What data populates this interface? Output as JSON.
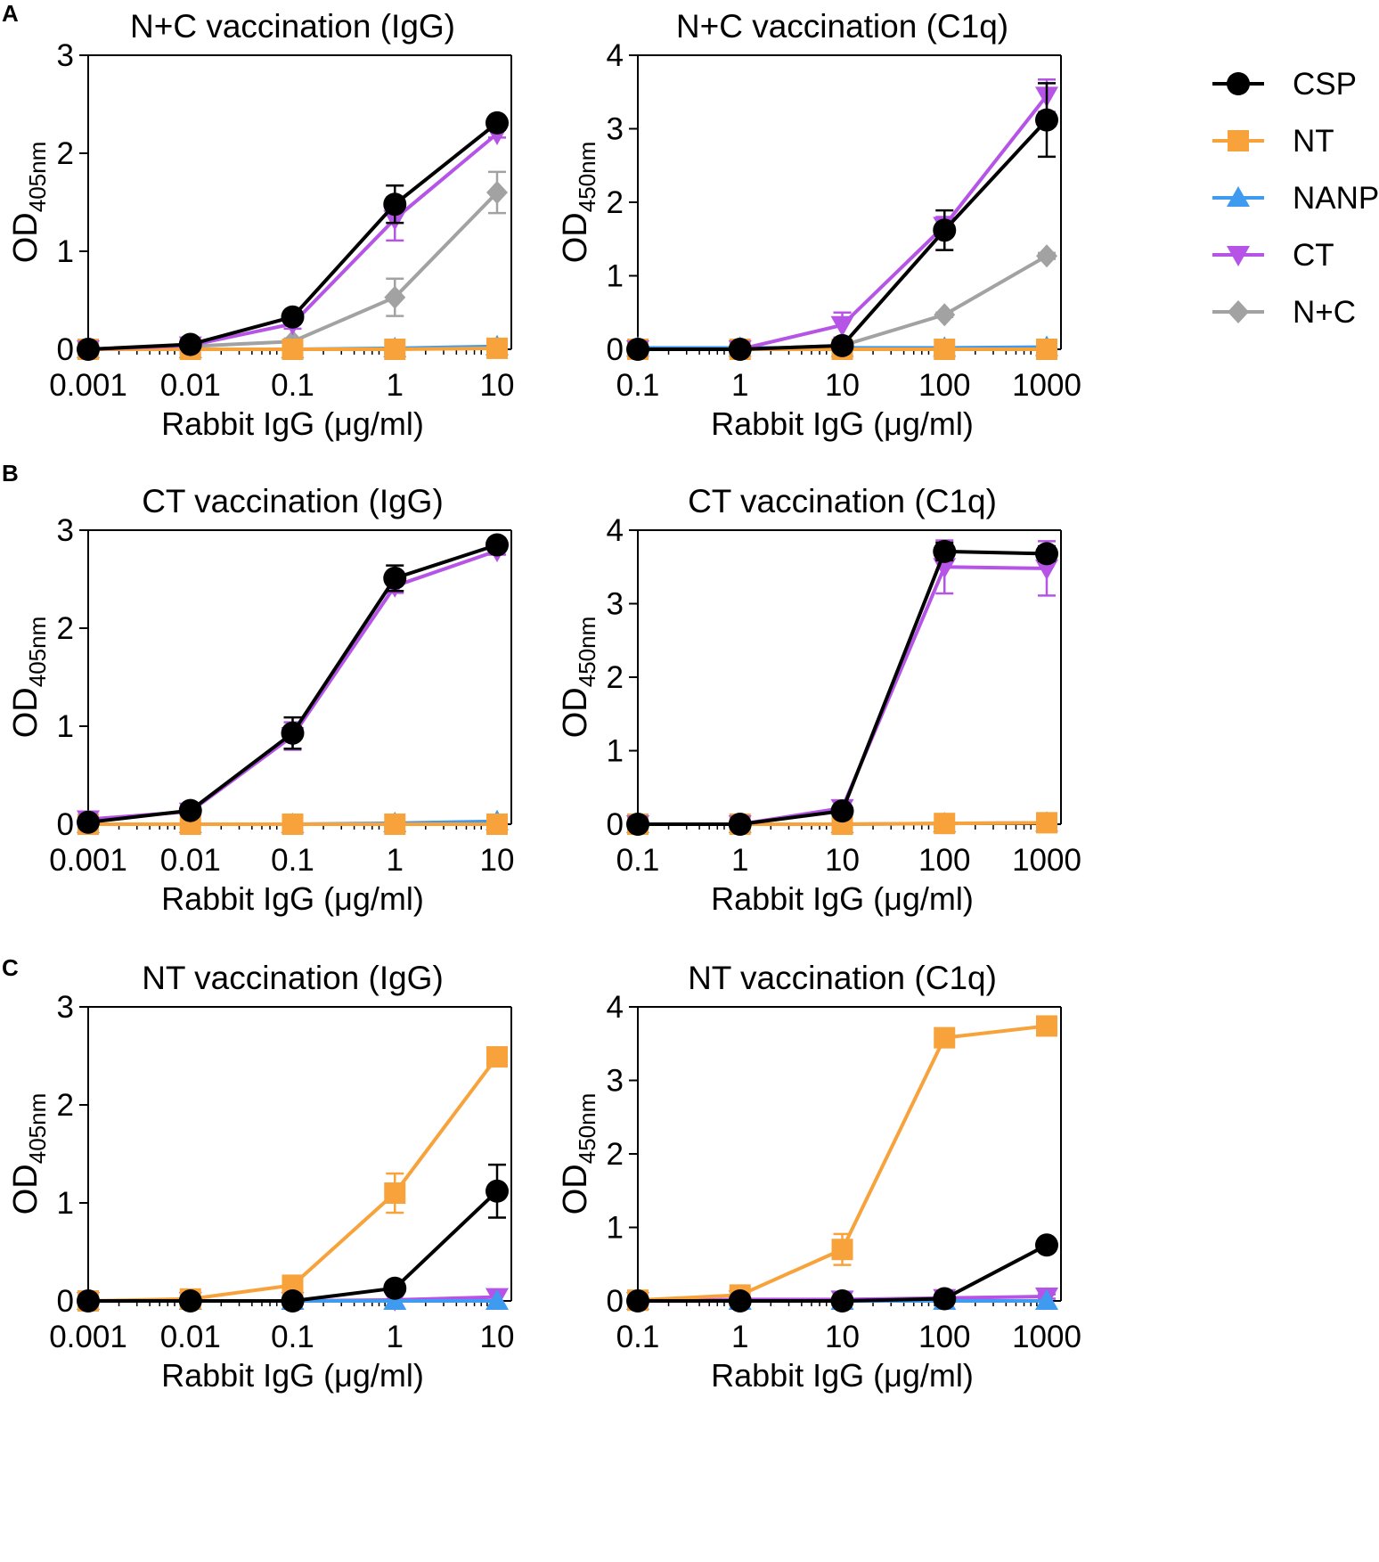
{
  "colors": {
    "CSP": "#000000",
    "NT": "#f7a23b",
    "NANP": "#3e9bf0",
    "CT": "#b554e6",
    "N+C": "#a2a2a2"
  },
  "legend": {
    "entries": [
      {
        "label": "CSP",
        "marker": "circle"
      },
      {
        "label": "NT",
        "marker": "square"
      },
      {
        "label": "NANP",
        "marker": "triangle-up"
      },
      {
        "label": "CT",
        "marker": "triangle-down"
      },
      {
        "label": "N+C",
        "marker": "diamond"
      }
    ]
  },
  "panels": [
    {
      "letter": "A"
    },
    {
      "letter": "B"
    },
    {
      "letter": "C"
    }
  ],
  "chart_data": [
    {
      "type": "line",
      "panel": "A",
      "title": "N+C vaccination (IgG)",
      "xlabel": "Rabbit IgG (μg/ml)",
      "ylabel_main": "OD",
      "ylabel_sub": "405nm",
      "xscale": "log",
      "x": [
        0.001,
        0.01,
        0.1,
        1,
        10
      ],
      "xtick_labels": [
        "0.001",
        "0.01",
        "0.1",
        "1",
        "10"
      ],
      "ylim": [
        0,
        3
      ],
      "yticks": [
        0,
        1,
        2,
        3
      ],
      "series": [
        {
          "name": "N+C",
          "values": [
            0.0,
            0.03,
            0.08,
            0.53,
            1.6
          ],
          "err": [
            0.01,
            0.01,
            0.03,
            0.19,
            0.21
          ]
        },
        {
          "name": "NANP",
          "values": [
            0.0,
            0.0,
            0.0,
            0.01,
            0.03
          ],
          "err": [
            0,
            0,
            0,
            0,
            0
          ]
        },
        {
          "name": "NT",
          "values": [
            0.0,
            0.0,
            0.0,
            0.0,
            0.01
          ],
          "err": [
            0,
            0,
            0,
            0,
            0
          ]
        },
        {
          "name": "CT",
          "values": [
            0.0,
            0.04,
            0.26,
            1.33,
            2.2
          ],
          "err": [
            0.01,
            0.02,
            0.05,
            0.22,
            0.04
          ]
        },
        {
          "name": "CSP",
          "values": [
            0.0,
            0.05,
            0.33,
            1.48,
            2.31
          ],
          "err": [
            0.01,
            0.02,
            0.06,
            0.19,
            0.04
          ]
        }
      ]
    },
    {
      "type": "line",
      "panel": "A",
      "title": "N+C vaccination (C1q)",
      "xlabel": "Rabbit IgG (μg/ml)",
      "ylabel_main": "OD",
      "ylabel_sub": "450nm",
      "xscale": "log",
      "x": [
        0.1,
        1,
        10,
        100,
        1000
      ],
      "xtick_labels": [
        "0.1",
        "1",
        "10",
        "100",
        "1000"
      ],
      "ylim": [
        0,
        4
      ],
      "yticks": [
        0,
        1,
        2,
        3,
        4
      ],
      "series": [
        {
          "name": "N+C",
          "values": [
            0.0,
            0.0,
            0.05,
            0.47,
            1.27
          ],
          "err": [
            0,
            0,
            0.02,
            0.03,
            0.04
          ]
        },
        {
          "name": "NANP",
          "values": [
            0.02,
            0.02,
            0.02,
            0.02,
            0.03
          ],
          "err": [
            0,
            0,
            0,
            0,
            0
          ]
        },
        {
          "name": "NT",
          "values": [
            0.0,
            0.0,
            0.0,
            0.0,
            0.0
          ],
          "err": [
            0,
            0,
            0,
            0,
            0
          ]
        },
        {
          "name": "CT",
          "values": [
            0.0,
            0.0,
            0.33,
            1.68,
            3.45
          ],
          "err": [
            0.01,
            0.01,
            0.17,
            0.12,
            0.22
          ]
        },
        {
          "name": "CSP",
          "values": [
            0.0,
            0.0,
            0.05,
            1.62,
            3.12
          ],
          "err": [
            0.01,
            0.01,
            0.02,
            0.27,
            0.5
          ]
        }
      ]
    },
    {
      "type": "line",
      "panel": "B",
      "title": "CT vaccination (IgG)",
      "xlabel": "Rabbit IgG (μg/ml)",
      "ylabel_main": "OD",
      "ylabel_sub": "405nm",
      "xscale": "log",
      "x": [
        0.001,
        0.01,
        0.1,
        1,
        10
      ],
      "xtick_labels": [
        "0.001",
        "0.01",
        "0.1",
        "1",
        "10"
      ],
      "ylim": [
        0,
        3
      ],
      "yticks": [
        0,
        1,
        2,
        3
      ],
      "series": [
        {
          "name": "NANP",
          "values": [
            0.0,
            0.0,
            0.0,
            0.01,
            0.03
          ],
          "err": [
            0,
            0,
            0,
            0,
            0
          ]
        },
        {
          "name": "NT",
          "values": [
            0.0,
            0.0,
            0.0,
            0.0,
            0.0
          ],
          "err": [
            0,
            0,
            0,
            0,
            0
          ]
        },
        {
          "name": "CT",
          "values": [
            0.05,
            0.13,
            0.9,
            2.43,
            2.79
          ],
          "err": [
            0.04,
            0.03,
            0.14,
            0.07,
            0.04
          ]
        },
        {
          "name": "CSP",
          "values": [
            0.02,
            0.14,
            0.93,
            2.51,
            2.85
          ],
          "err": [
            0.02,
            0.03,
            0.16,
            0.13,
            0.03
          ]
        }
      ]
    },
    {
      "type": "line",
      "panel": "B",
      "title": "CT vaccination (C1q)",
      "xlabel": "Rabbit IgG (μg/ml)",
      "ylabel_main": "OD",
      "ylabel_sub": "450nm",
      "xscale": "log",
      "x": [
        0.1,
        1,
        10,
        100,
        1000
      ],
      "xtick_labels": [
        "0.1",
        "1",
        "10",
        "100",
        "1000"
      ],
      "ylim": [
        0,
        4
      ],
      "yticks": [
        0,
        1,
        2,
        3,
        4
      ],
      "series": [
        {
          "name": "NANP",
          "values": [
            0.0,
            0.0,
            0.0,
            0.01,
            0.02
          ],
          "err": [
            0,
            0,
            0,
            0,
            0
          ]
        },
        {
          "name": "NT",
          "values": [
            0.0,
            0.0,
            0.0,
            0.01,
            0.02
          ],
          "err": [
            0,
            0,
            0,
            0,
            0
          ]
        },
        {
          "name": "CT",
          "values": [
            0.0,
            0.0,
            0.22,
            3.5,
            3.48
          ],
          "err": [
            0.01,
            0.01,
            0.08,
            0.36,
            0.37
          ]
        },
        {
          "name": "CSP",
          "values": [
            0.0,
            0.0,
            0.18,
            3.71,
            3.68
          ],
          "err": [
            0.01,
            0.01,
            0.05,
            0.12,
            0.1
          ]
        }
      ]
    },
    {
      "type": "line",
      "panel": "C",
      "title": "NT vaccination (IgG)",
      "xlabel": "Rabbit IgG (μg/ml)",
      "ylabel_main": "OD",
      "ylabel_sub": "405nm",
      "xscale": "log",
      "x": [
        0.001,
        0.01,
        0.1,
        1,
        10
      ],
      "xtick_labels": [
        "0.001",
        "0.01",
        "0.1",
        "1",
        "10"
      ],
      "ylim": [
        0,
        3
      ],
      "yticks": [
        0,
        1,
        2,
        3
      ],
      "series": [
        {
          "name": "CT",
          "values": [
            0.0,
            0.0,
            0.0,
            0.01,
            0.04
          ],
          "err": [
            0,
            0,
            0,
            0,
            0.02
          ]
        },
        {
          "name": "NANP",
          "values": [
            0.0,
            0.0,
            0.0,
            0.0,
            0.0
          ],
          "err": [
            0,
            0,
            0,
            0,
            0
          ]
        },
        {
          "name": "NT",
          "values": [
            0.0,
            0.02,
            0.16,
            1.1,
            2.49
          ],
          "err": [
            0.01,
            0.02,
            0.03,
            0.2,
            0.04
          ]
        },
        {
          "name": "CSP",
          "values": [
            0.0,
            0.0,
            0.0,
            0.13,
            1.12
          ],
          "err": [
            0.01,
            0.01,
            0.01,
            0.03,
            0.27
          ]
        }
      ]
    },
    {
      "type": "line",
      "panel": "C",
      "title": "NT vaccination (C1q)",
      "xlabel": "Rabbit IgG (μg/ml)",
      "ylabel_main": "OD",
      "ylabel_sub": "450nm",
      "xscale": "log",
      "x": [
        0.1,
        1,
        10,
        100,
        1000
      ],
      "xtick_labels": [
        "0.1",
        "1",
        "10",
        "100",
        "1000"
      ],
      "ylim": [
        0,
        4
      ],
      "yticks": [
        0,
        1,
        2,
        3,
        4
      ],
      "series": [
        {
          "name": "CT",
          "values": [
            0.0,
            0.02,
            0.02,
            0.04,
            0.06
          ],
          "err": [
            0,
            0,
            0.02,
            0.02,
            0.03
          ]
        },
        {
          "name": "NANP",
          "values": [
            0.0,
            0.0,
            0.0,
            0.0,
            0.0
          ],
          "err": [
            0,
            0,
            0,
            0,
            0
          ]
        },
        {
          "name": "NT",
          "values": [
            0.01,
            0.08,
            0.7,
            3.58,
            3.74
          ],
          "err": [
            0.01,
            0.02,
            0.21,
            0.06,
            0.06
          ]
        },
        {
          "name": "CSP",
          "values": [
            0.0,
            0.0,
            0.0,
            0.03,
            0.76
          ],
          "err": [
            0,
            0,
            0.01,
            0.02,
            0.05
          ]
        }
      ]
    }
  ]
}
